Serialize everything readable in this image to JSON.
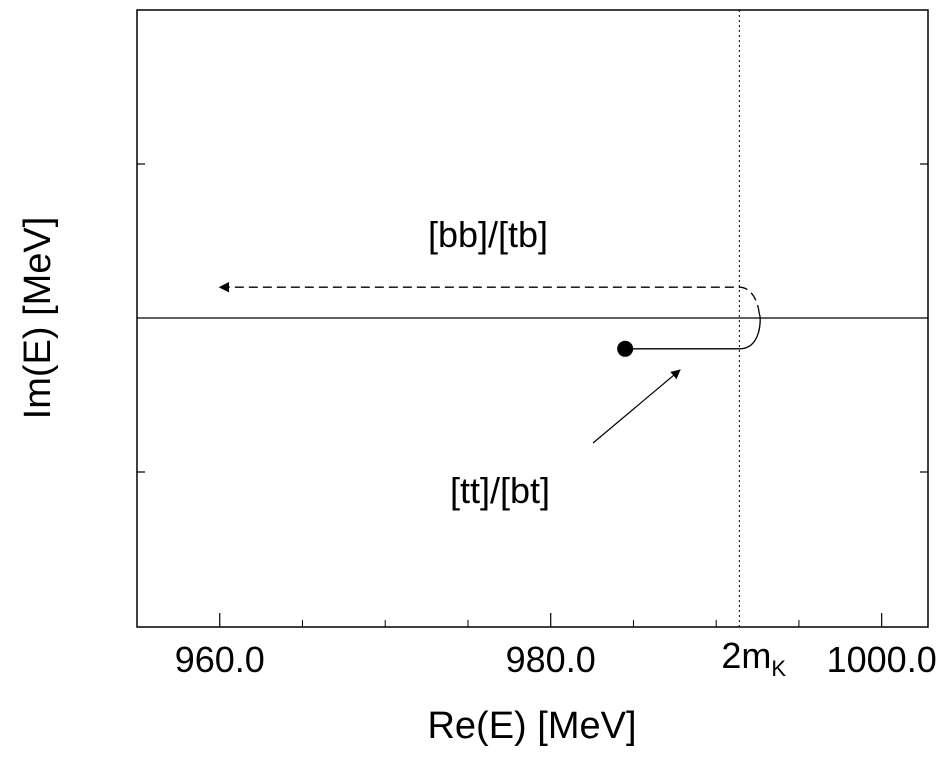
{
  "chart_data": {
    "type": "line",
    "xlabel": "Re(E) [MeV]",
    "ylabel": "Im(E) [MeV]",
    "xlim": [
      955.0,
      1002.8
    ],
    "x_ticks_major": [
      {
        "value": 960.0,
        "label": "960.0"
      },
      {
        "value": 980.0,
        "label": "980.0"
      },
      {
        "value": 1000.0,
        "label": "1000.0"
      }
    ],
    "x_ticks_minor": [
      965.0,
      970.0,
      975.0,
      985.0,
      990.0,
      995.0
    ],
    "y_ticks": [
      -1,
      1
    ],
    "threshold": {
      "x": 991.4,
      "label_main": "2m",
      "label_sub": "K"
    },
    "series": [
      {
        "label": "[tt]/[bt]",
        "style": "solid",
        "points": [
          [
            984.5,
            -0.2
          ],
          [
            991.4,
            -0.2
          ]
        ],
        "start_marker": "filled-circle"
      },
      {
        "label": "[bb]/[tb]",
        "style": "dashed",
        "points": [
          [
            991.4,
            0.2
          ],
          [
            960.0,
            0.2
          ]
        ],
        "end_marker": "arrow"
      }
    ],
    "annotations": [
      {
        "text": "[bb]/[tb]"
      },
      {
        "text": "[tt]/[bt]"
      }
    ]
  }
}
